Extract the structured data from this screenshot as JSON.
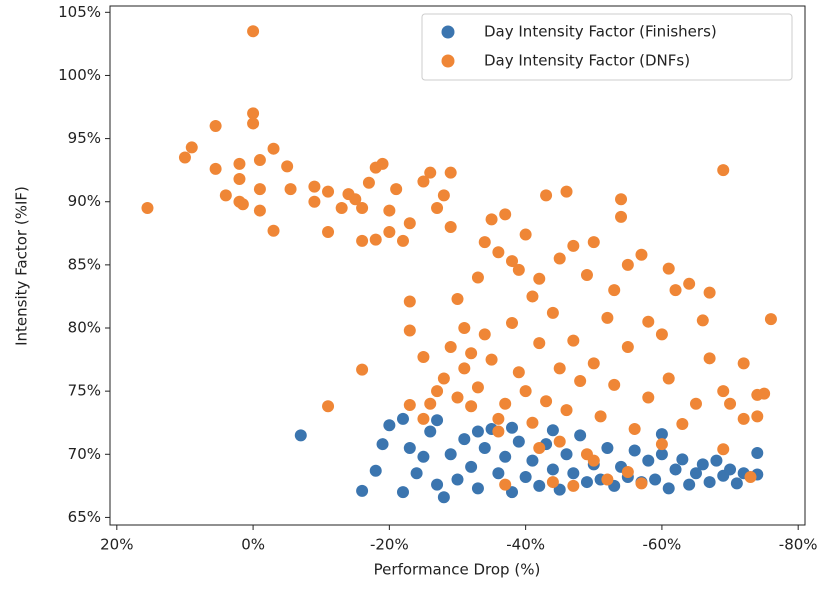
{
  "chart_data": {
    "type": "scatter",
    "xlabel": "Performance Drop (%)",
    "ylabel": "Intensity Factor (%IF)",
    "xlim": [
      21,
      -81
    ],
    "ylim": [
      64.4,
      105.5
    ],
    "xticks": [
      {
        "value": 20,
        "label": "20%"
      },
      {
        "value": 0,
        "label": "0%"
      },
      {
        "value": -20,
        "label": "-20%"
      },
      {
        "value": -40,
        "label": "-40%"
      },
      {
        "value": -60,
        "label": "-60%"
      },
      {
        "value": -80,
        "label": "-80%"
      }
    ],
    "yticks": [
      {
        "value": 65,
        "label": "65%"
      },
      {
        "value": 70,
        "label": "70%"
      },
      {
        "value": 75,
        "label": "75%"
      },
      {
        "value": 80,
        "label": "80%"
      },
      {
        "value": 85,
        "label": "85%"
      },
      {
        "value": 90,
        "label": "90%"
      },
      {
        "value": 95,
        "label": "95%"
      },
      {
        "value": 100,
        "label": "100%"
      },
      {
        "value": 105,
        "label": "105%"
      }
    ],
    "legend": "upper right",
    "series": [
      {
        "name": "Day Intensity Factor (Finishers)",
        "color": "#3b75af",
        "x": [
          -7,
          -16,
          -22,
          -18,
          -19,
          -20,
          -22,
          -23,
          -24,
          -25,
          -26,
          -27,
          -28,
          -27,
          -29,
          -30,
          -31,
          -32,
          -33,
          -34,
          -35,
          -36,
          -37,
          -38,
          -39,
          -40,
          -41,
          -42,
          -43,
          -44,
          -45,
          -46,
          -47,
          -48,
          -49,
          -50,
          -51,
          -52,
          -53,
          -54,
          -55,
          -56,
          -57,
          -58,
          -59,
          -60,
          -61,
          -62,
          -63,
          -64,
          -65,
          -66,
          -67,
          -68,
          -69,
          -70,
          -71,
          -72,
          -74,
          -74,
          -60,
          -33,
          -38,
          -44
        ],
        "values": [
          71.5,
          67.1,
          67,
          68.7,
          70.8,
          72.3,
          72.8,
          70.5,
          68.5,
          69.8,
          71.8,
          67.6,
          66.6,
          72.7,
          70,
          68,
          71.2,
          69,
          67.3,
          70.5,
          72,
          68.5,
          69.8,
          67,
          71,
          68.2,
          69.5,
          67.5,
          70.8,
          68.8,
          67.2,
          70,
          68.5,
          71.5,
          67.8,
          69.2,
          68,
          70.5,
          67.5,
          69,
          68.2,
          70.3,
          67.8,
          69.5,
          68,
          70,
          67.3,
          68.8,
          69.6,
          67.6,
          68.5,
          69.2,
          67.8,
          69.5,
          68.3,
          68.8,
          67.7,
          68.5,
          70.1,
          68.4,
          71.6,
          71.8,
          72.1,
          71.9
        ]
      },
      {
        "name": "Day Intensity Factor (DNFs)",
        "color": "#ef8636",
        "x": [
          15.5,
          10,
          9,
          5.5,
          5.5,
          4,
          2,
          2,
          1.5,
          2,
          0,
          0,
          0,
          -1,
          -1,
          -1,
          -3,
          -3,
          -5,
          -5.5,
          -9,
          -9,
          -11,
          -11,
          -13,
          -14,
          -15,
          -16,
          -16,
          -17,
          -18,
          -18,
          -19,
          -20,
          -20,
          -21,
          -22,
          -23,
          -23,
          -23,
          -23,
          -16,
          -11,
          -25,
          -26,
          -27,
          -28,
          -29,
          -29,
          -30,
          -31,
          -32,
          -33,
          -34,
          -35,
          -36,
          -37,
          -38,
          -39,
          -40,
          -41,
          -42,
          -43,
          -45,
          -46,
          -47,
          -49,
          -50,
          -53,
          -54,
          -54,
          -55,
          -57,
          -58,
          -60,
          -61,
          -62,
          -64,
          -66,
          -67,
          -69,
          -69,
          -70,
          -72,
          -72,
          -73,
          -74,
          -76,
          -75,
          -74,
          -69,
          -67,
          -65,
          -63,
          -61,
          -60,
          -58,
          -56,
          -55,
          -53,
          -52,
          -51,
          -50,
          -49,
          -48,
          -47,
          -46,
          -45,
          -44,
          -43,
          -42,
          -41,
          -40,
          -39,
          -38,
          -37,
          -36,
          -35,
          -34,
          -33,
          -32,
          -31,
          -30,
          -29,
          -28,
          -27,
          -26,
          -25,
          -25,
          -36,
          -37,
          -44,
          -47,
          -52,
          -55,
          -57,
          -50,
          -45,
          -42
        ],
        "values": [
          89.5,
          93.5,
          94.3,
          96,
          92.6,
          90.5,
          91.8,
          93,
          89.8,
          90,
          103.5,
          97,
          96.2,
          93.3,
          91,
          89.3,
          94.2,
          87.7,
          92.8,
          91,
          91.2,
          90,
          87.6,
          90.8,
          89.5,
          90.6,
          90.2,
          89.5,
          86.9,
          91.5,
          92.7,
          87,
          93,
          89.3,
          87.6,
          91,
          86.9,
          88.3,
          82.1,
          79.8,
          73.9,
          76.7,
          73.8,
          91.6,
          92.3,
          89.5,
          90.5,
          88,
          92.3,
          82.3,
          80,
          78,
          84,
          86.8,
          88.6,
          86,
          89,
          85.3,
          84.6,
          87.4,
          82.5,
          83.9,
          90.5,
          85.5,
          90.8,
          86.5,
          84.2,
          86.8,
          83,
          90.2,
          88.8,
          85,
          85.8,
          80.5,
          79.5,
          84.7,
          83,
          83.5,
          80.6,
          82.8,
          92.5,
          75,
          74,
          77.2,
          72.8,
          68.2,
          74.7,
          80.7,
          74.8,
          73,
          70.4,
          77.6,
          74,
          72.4,
          76,
          70.8,
          74.5,
          72,
          78.5,
          75.5,
          80.8,
          73,
          77.2,
          70,
          75.8,
          79,
          73.5,
          76.8,
          81.2,
          74.2,
          78.8,
          72.5,
          75,
          76.5,
          80.4,
          74,
          72.8,
          77.5,
          79.5,
          75.3,
          73.8,
          76.8,
          74.5,
          78.5,
          76,
          75,
          74,
          77.7,
          72.8,
          71.8,
          67.6,
          67.8,
          67.5,
          68,
          68.6,
          67.7,
          69.5,
          71,
          70.5
        ]
      }
    ]
  }
}
